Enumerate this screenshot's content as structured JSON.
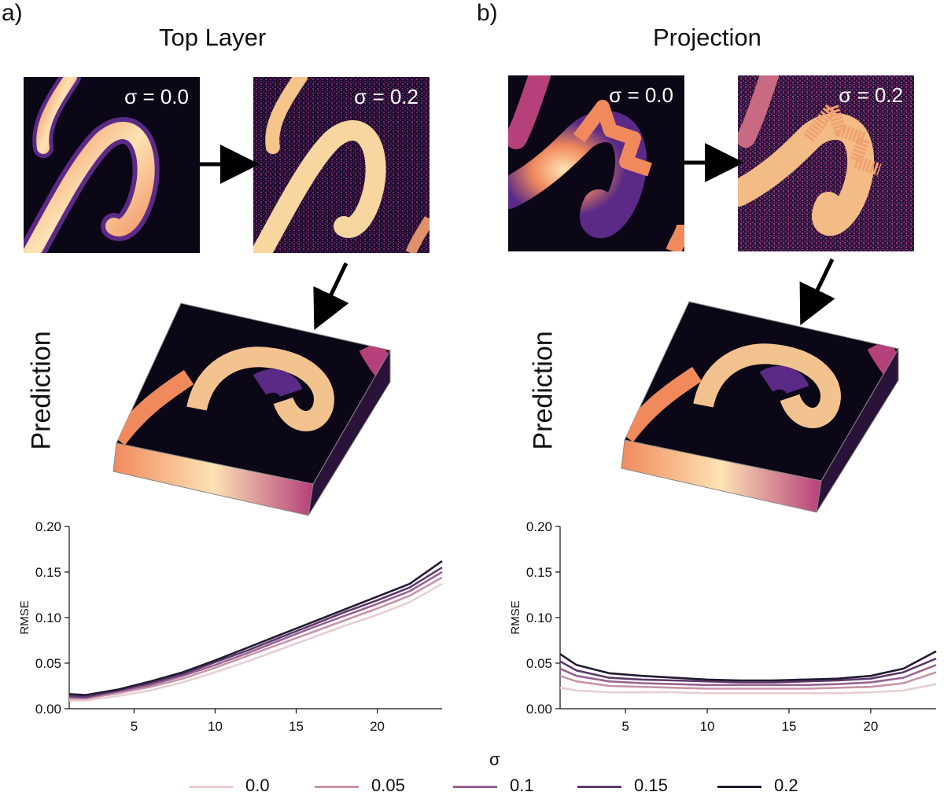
{
  "panels": [
    {
      "label": "a)",
      "title": "Top Layer",
      "input_tag": "σ = 0.0",
      "noisy_tag": "σ = 0.2",
      "prediction_label": "Prediction"
    },
    {
      "label": "b)",
      "title": "Projection",
      "input_tag": "σ = 0.0",
      "noisy_tag": "σ = 0.2",
      "prediction_label": "Prediction"
    }
  ],
  "colors": {
    "bg_dark": "#0c0717",
    "purple": "#5b2a86",
    "magenta": "#b5407a",
    "orange": "#f08a5d",
    "cream": "#fde3b4",
    "series": [
      "#e8cfcf",
      "#c893a8",
      "#9a6192",
      "#5c3a6b",
      "#231a33"
    ]
  },
  "shared_xlabel": "σ",
  "chart_data": [
    {
      "type": "line",
      "panel": "a",
      "ylabel": "RMSE",
      "xlabel": "σ",
      "xlim": [
        1,
        24
      ],
      "ylim": [
        0,
        0.2
      ],
      "xticks": [
        5,
        10,
        15,
        20
      ],
      "yticks": [
        0.0,
        0.05,
        0.1,
        0.15,
        0.2
      ],
      "ytick_labels": [
        "0.00",
        "0.05",
        "0.10",
        "0.15",
        "0.20"
      ],
      "x": [
        1,
        2,
        4,
        6,
        8,
        10,
        12,
        14,
        16,
        18,
        20,
        22,
        24
      ],
      "series": [
        {
          "name": "0.0",
          "values": [
            0.009,
            0.009,
            0.014,
            0.02,
            0.029,
            0.04,
            0.052,
            0.065,
            0.078,
            0.091,
            0.103,
            0.117,
            0.137
          ]
        },
        {
          "name": "0.05",
          "values": [
            0.011,
            0.011,
            0.017,
            0.024,
            0.033,
            0.045,
            0.058,
            0.071,
            0.084,
            0.097,
            0.11,
            0.124,
            0.144
          ]
        },
        {
          "name": "0.1",
          "values": [
            0.013,
            0.012,
            0.019,
            0.026,
            0.036,
            0.048,
            0.061,
            0.075,
            0.089,
            0.102,
            0.115,
            0.129,
            0.15
          ]
        },
        {
          "name": "0.15",
          "values": [
            0.014,
            0.013,
            0.02,
            0.028,
            0.038,
            0.051,
            0.064,
            0.078,
            0.092,
            0.106,
            0.119,
            0.133,
            0.155
          ]
        },
        {
          "name": "0.2",
          "values": [
            0.016,
            0.015,
            0.021,
            0.03,
            0.04,
            0.053,
            0.067,
            0.081,
            0.095,
            0.109,
            0.123,
            0.137,
            0.162
          ]
        }
      ]
    },
    {
      "type": "line",
      "panel": "b",
      "ylabel": "RMSE",
      "xlabel": "σ",
      "xlim": [
        1,
        24
      ],
      "ylim": [
        0,
        0.2
      ],
      "xticks": [
        5,
        10,
        15,
        20
      ],
      "yticks": [
        0.0,
        0.05,
        0.1,
        0.15,
        0.2
      ],
      "ytick_labels": [
        "0.00",
        "0.05",
        "0.10",
        "0.15",
        "0.20"
      ],
      "x": [
        1,
        2,
        4,
        6,
        8,
        10,
        12,
        14,
        16,
        18,
        20,
        22,
        24
      ],
      "series": [
        {
          "name": "0.0",
          "values": [
            0.023,
            0.02,
            0.018,
            0.018,
            0.018,
            0.017,
            0.017,
            0.017,
            0.017,
            0.017,
            0.018,
            0.02,
            0.027
          ]
        },
        {
          "name": "0.05",
          "values": [
            0.036,
            0.03,
            0.025,
            0.024,
            0.023,
            0.022,
            0.022,
            0.022,
            0.022,
            0.023,
            0.024,
            0.028,
            0.04
          ]
        },
        {
          "name": "0.1",
          "values": [
            0.044,
            0.036,
            0.03,
            0.028,
            0.027,
            0.026,
            0.026,
            0.026,
            0.026,
            0.027,
            0.029,
            0.034,
            0.048
          ]
        },
        {
          "name": "0.15",
          "values": [
            0.052,
            0.042,
            0.034,
            0.032,
            0.031,
            0.03,
            0.029,
            0.029,
            0.03,
            0.031,
            0.033,
            0.04,
            0.055
          ]
        },
        {
          "name": "0.2",
          "values": [
            0.06,
            0.048,
            0.039,
            0.036,
            0.034,
            0.032,
            0.031,
            0.031,
            0.032,
            0.033,
            0.036,
            0.044,
            0.063
          ]
        }
      ]
    }
  ],
  "legend": {
    "entries": [
      "0.0",
      "0.05",
      "0.1",
      "0.15",
      "0.2"
    ]
  }
}
